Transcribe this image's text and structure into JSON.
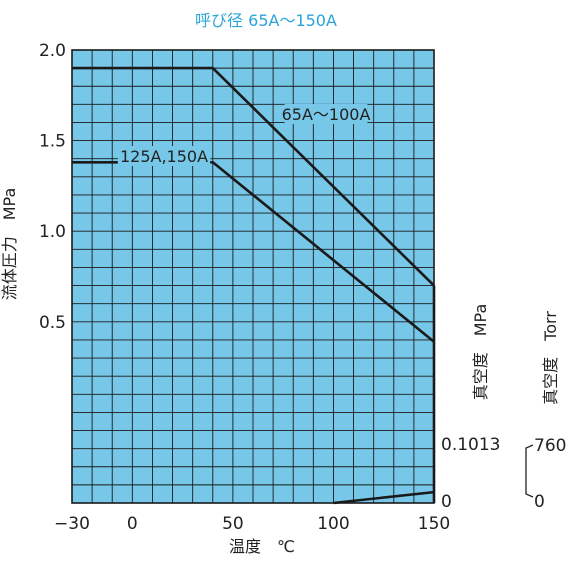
{
  "chart_data": {
    "type": "line",
    "title": "呼び径 65A～150A",
    "xlabel": "温度　℃",
    "ylabel": "流体圧力　MPa",
    "xlim": [
      -30,
      150
    ],
    "ylim": [
      -0.5,
      2.0
    ],
    "x_ticks": [
      "−30",
      "0",
      "50",
      "100",
      "150"
    ],
    "y_ticks": [
      "0.5",
      "1.0",
      "1.5",
      "2.0"
    ],
    "grid": true,
    "series": [
      {
        "name": "65A～100A",
        "points": [
          [
            -30,
            1.9
          ],
          [
            40,
            1.9
          ],
          [
            150,
            0.7
          ]
        ]
      },
      {
        "name": "125A,150A",
        "points": [
          [
            -30,
            1.38
          ],
          [
            40,
            1.38
          ],
          [
            150,
            0.39
          ]
        ]
      }
    ],
    "vacuum": {
      "mpa_label": "真空度　MPa",
      "torr_label": "真空度　Torr",
      "mpa_ticks": [
        "0.1013",
        "0"
      ],
      "torr_ticks": [
        "760",
        "0"
      ],
      "line": [
        [
          100,
          -0.5
        ],
        [
          150,
          -0.44
        ]
      ]
    },
    "colors": {
      "title": "#2aa5d8",
      "plot_bg": "#77c7e8",
      "grid": "#1a1a1a",
      "line": "#1a1a1a"
    }
  }
}
